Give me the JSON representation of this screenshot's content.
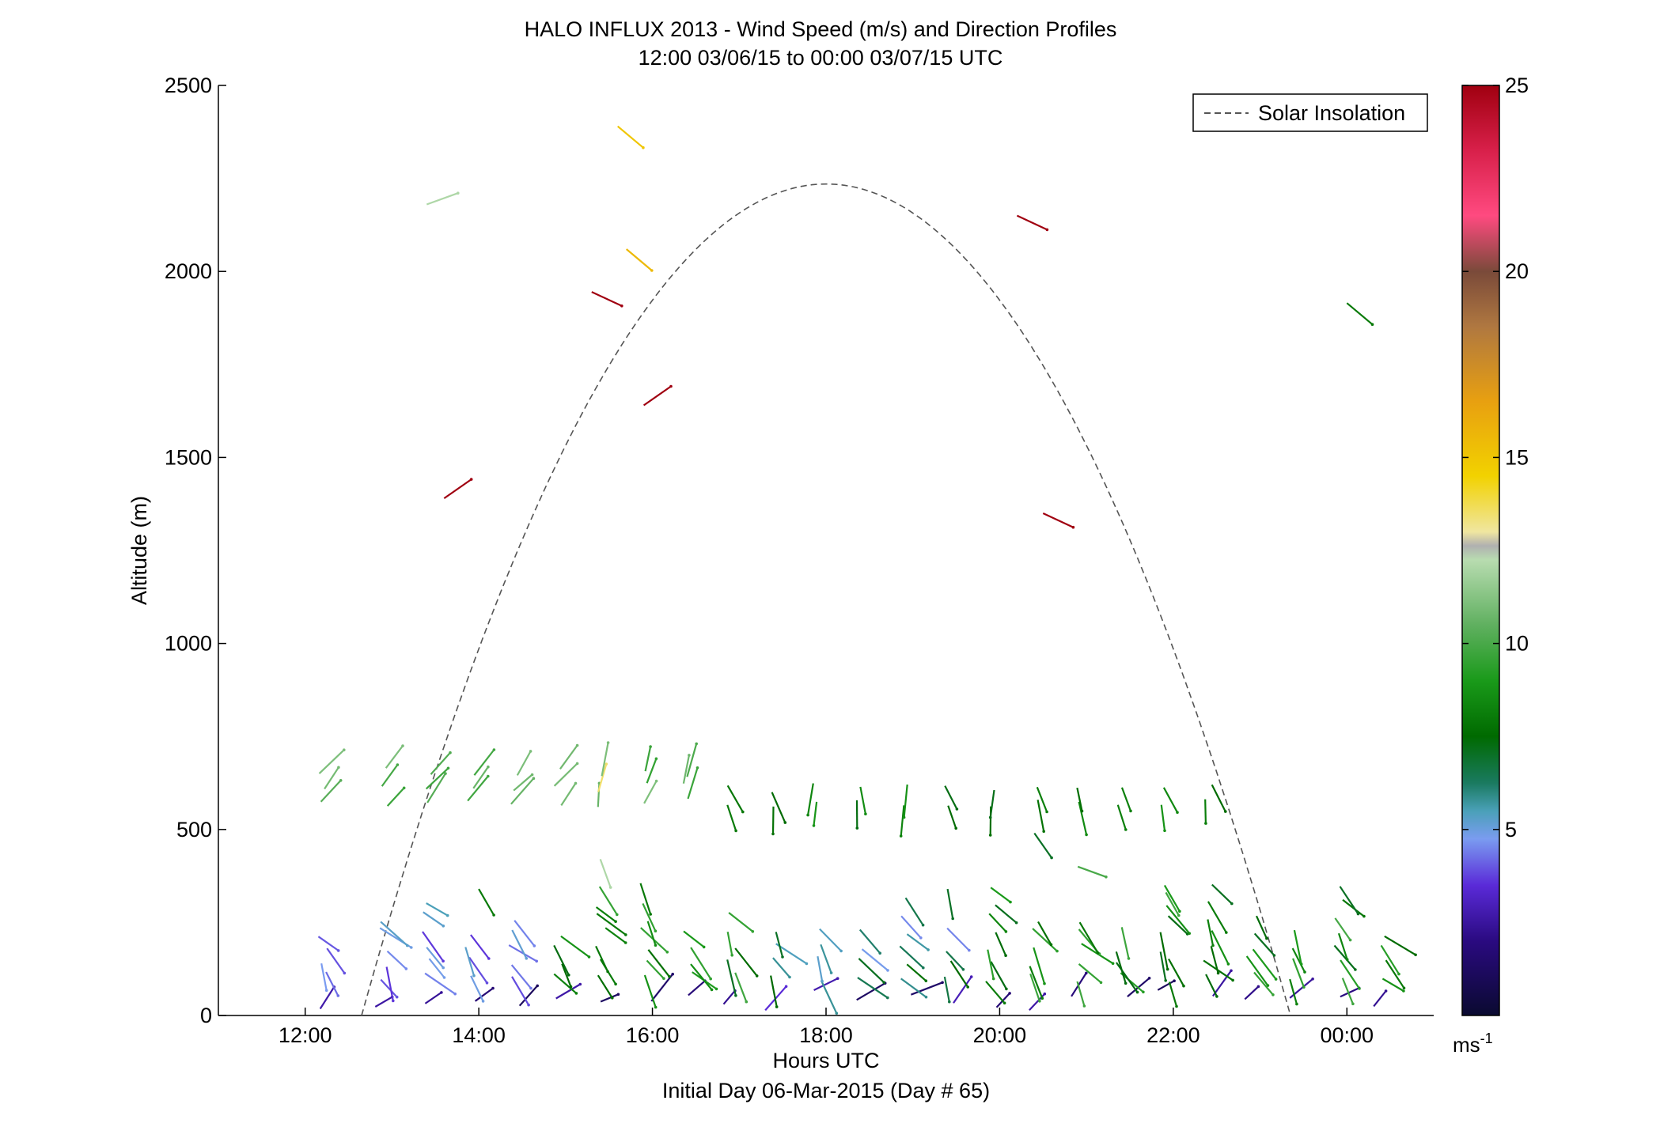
{
  "chart_data": {
    "type": "vector-profile",
    "title": "HALO INFLUX 2013 - Wind Speed (m/s) and Direction Profiles",
    "subtitle": "12:00 03/06/15 to 00:00 03/07/15  UTC",
    "xlabel": "Hours UTC",
    "xlabel2": "Initial Day 06-Mar-2015 (Day # 65)",
    "ylabel": "Altitude (m)",
    "xlim": [
      11,
      25
    ],
    "ylim": [
      0,
      2500
    ],
    "x_ticks": [
      12,
      14,
      16,
      18,
      20,
      22,
      24
    ],
    "x_tick_labels": [
      "12:00",
      "14:00",
      "16:00",
      "18:00",
      "20:00",
      "22:00",
      "00:00"
    ],
    "y_ticks": [
      0,
      500,
      1000,
      1500,
      2000,
      2500
    ],
    "y_tick_labels": [
      "0",
      "500",
      "1000",
      "1500",
      "2000",
      "2500"
    ],
    "legend": {
      "position": "top-right",
      "entries": [
        "Solar Insolation"
      ]
    },
    "colorbar": {
      "min": 0,
      "max": 25,
      "ticks": [
        5,
        10,
        15,
        20,
        25
      ],
      "tick_labels": [
        "5",
        "10",
        "15",
        "20",
        "25"
      ],
      "unit_base": "ms",
      "unit_exp": "-1"
    },
    "solar_insolation": {
      "start_hour": 12.65,
      "end_hour": 23.35,
      "peak_hour": 18.0,
      "peak_altitude": 2235
    },
    "winds_upper": [
      {
        "hour": 13.4,
        "alt": 2180,
        "speed": 12
      },
      {
        "hour": 15.6,
        "alt": 2390,
        "speed": 15
      },
      {
        "hour": 15.7,
        "alt": 2060,
        "speed": 15.5
      },
      {
        "hour": 15.3,
        "alt": 1945,
        "speed": 25
      },
      {
        "hour": 15.9,
        "alt": 1640,
        "speed": 25
      },
      {
        "hour": 13.6,
        "alt": 1390,
        "speed": 25
      },
      {
        "hour": 20.2,
        "alt": 2150,
        "speed": 25
      },
      {
        "hour": 20.5,
        "alt": 1350,
        "speed": 25
      },
      {
        "hour": 24.0,
        "alt": 1915,
        "speed": 8
      }
    ],
    "profile_times": [
      12.2,
      12.9,
      13.4,
      13.9,
      14.4,
      14.9,
      15.4,
      15.9,
      16.4,
      16.9,
      17.4,
      17.9,
      18.4,
      18.9,
      19.4,
      19.9,
      20.4,
      20.9,
      21.4,
      21.9,
      22.4,
      22.9,
      23.4,
      23.9,
      24.4
    ]
  }
}
